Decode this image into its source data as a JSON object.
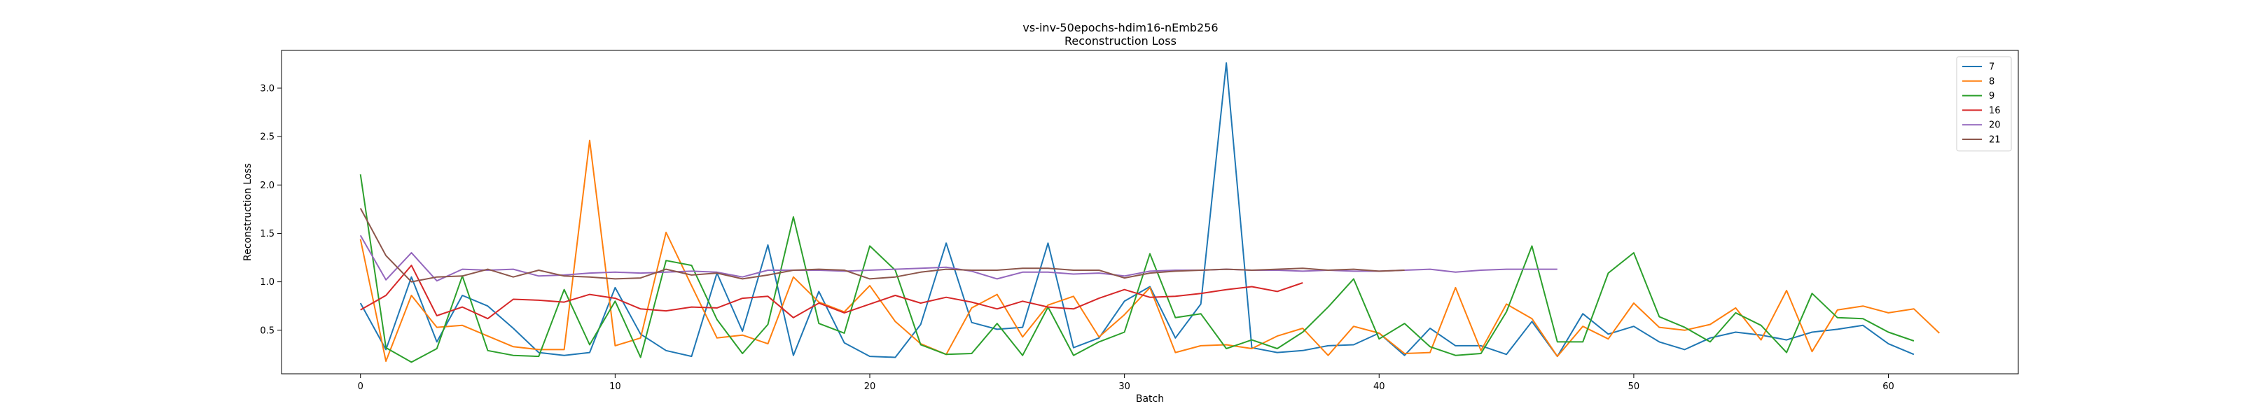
{
  "chart_data": {
    "type": "line",
    "title": "vs-inv-50epochs-hdim16-nEmb256",
    "subtitle": "Reconstruction Loss",
    "xlabel": "Batch",
    "ylabel": "Reconstruction Loss",
    "xlim": [
      -3.1,
      65.1
    ],
    "ylim": [
      0.05,
      3.39
    ],
    "xticks": [
      0,
      10,
      20,
      30,
      40,
      50,
      60
    ],
    "yticks": [
      0.5,
      1.0,
      1.5,
      2.0,
      2.5,
      3.0
    ],
    "ytick_labels": [
      "0.5",
      "1.0",
      "1.5",
      "2.0",
      "2.5",
      "3.0"
    ],
    "grid": false,
    "legend_position": "top-right",
    "series": [
      {
        "name": "7",
        "color": "#1f77b4",
        "values": [
          0.78,
          0.3,
          1.05,
          0.38,
          0.86,
          0.75,
          0.52,
          0.27,
          0.24,
          0.27,
          0.94,
          0.46,
          0.29,
          0.23,
          1.09,
          0.49,
          1.38,
          0.24,
          0.9,
          0.37,
          0.23,
          0.22,
          0.56,
          1.4,
          0.58,
          0.51,
          0.53,
          1.4,
          0.32,
          0.42,
          0.8,
          0.95,
          0.42,
          0.77,
          3.26,
          0.32,
          0.27,
          0.29,
          0.34,
          0.35,
          0.47,
          0.24,
          0.52,
          0.34,
          0.34,
          0.25,
          0.59,
          0.23,
          0.67,
          0.46,
          0.54,
          0.38,
          0.3,
          0.42,
          0.48,
          0.45,
          0.4,
          0.48,
          0.51,
          0.55,
          0.36,
          0.25
        ]
      },
      {
        "name": "8",
        "color": "#ff7f0e",
        "values": [
          1.44,
          0.18,
          0.86,
          0.53,
          0.55,
          0.44,
          0.33,
          0.3,
          0.3,
          2.46,
          0.34,
          0.42,
          1.51,
          0.96,
          0.42,
          0.45,
          0.36,
          1.05,
          0.79,
          0.69,
          0.96,
          0.59,
          0.36,
          0.25,
          0.73,
          0.87,
          0.43,
          0.76,
          0.85,
          0.43,
          0.66,
          0.94,
          0.27,
          0.34,
          0.35,
          0.31,
          0.44,
          0.52,
          0.24,
          0.54,
          0.47,
          0.26,
          0.27,
          0.94,
          0.29,
          0.77,
          0.62,
          0.23,
          0.54,
          0.41,
          0.78,
          0.53,
          0.5,
          0.56,
          0.73,
          0.4,
          0.91,
          0.28,
          0.71,
          0.75,
          0.68,
          0.72,
          0.47
        ]
      },
      {
        "name": "9",
        "color": "#2ca02c",
        "values": [
          2.11,
          0.32,
          0.17,
          0.31,
          1.06,
          0.29,
          0.24,
          0.23,
          0.92,
          0.35,
          0.8,
          0.22,
          1.22,
          1.17,
          0.61,
          0.26,
          0.56,
          1.67,
          0.57,
          0.47,
          1.37,
          1.12,
          0.35,
          0.25,
          0.26,
          0.57,
          0.24,
          0.74,
          0.24,
          0.38,
          0.48,
          1.29,
          0.63,
          0.67,
          0.31,
          0.4,
          0.31,
          0.48,
          0.74,
          1.03,
          0.41,
          0.57,
          0.33,
          0.24,
          0.26,
          0.69,
          1.37,
          0.38,
          0.38,
          1.09,
          1.3,
          0.64,
          0.53,
          0.38,
          0.68,
          0.55,
          0.27,
          0.88,
          0.63,
          0.62,
          0.48,
          0.39
        ]
      },
      {
        "name": "16",
        "color": "#d62728",
        "values": [
          0.71,
          0.86,
          1.17,
          0.65,
          0.74,
          0.62,
          0.82,
          0.81,
          0.79,
          0.87,
          0.83,
          0.72,
          0.7,
          0.74,
          0.73,
          0.83,
          0.85,
          0.63,
          0.78,
          0.68,
          0.77,
          0.86,
          0.78,
          0.84,
          0.79,
          0.72,
          0.8,
          0.74,
          0.72,
          0.83,
          0.92,
          0.84,
          0.85,
          0.88,
          0.92,
          0.95,
          0.9,
          0.99
        ]
      },
      {
        "name": "20",
        "color": "#9467bd",
        "values": [
          1.48,
          1.02,
          1.3,
          1.01,
          1.13,
          1.12,
          1.13,
          1.06,
          1.07,
          1.09,
          1.1,
          1.09,
          1.1,
          1.11,
          1.1,
          1.05,
          1.12,
          1.12,
          1.12,
          1.11,
          1.12,
          1.13,
          1.14,
          1.15,
          1.11,
          1.03,
          1.1,
          1.1,
          1.08,
          1.09,
          1.06,
          1.11,
          1.12,
          1.12,
          1.13,
          1.12,
          1.12,
          1.11,
          1.12,
          1.11,
          1.11,
          1.12,
          1.13,
          1.1,
          1.12,
          1.13,
          1.13,
          1.13
        ]
      },
      {
        "name": "21",
        "color": "#8c564b",
        "values": [
          1.76,
          1.27,
          1.0,
          1.05,
          1.06,
          1.13,
          1.05,
          1.12,
          1.06,
          1.05,
          1.03,
          1.04,
          1.13,
          1.07,
          1.09,
          1.03,
          1.07,
          1.12,
          1.13,
          1.12,
          1.03,
          1.05,
          1.1,
          1.13,
          1.12,
          1.12,
          1.14,
          1.14,
          1.12,
          1.12,
          1.04,
          1.09,
          1.11,
          1.12,
          1.13,
          1.12,
          1.13,
          1.14,
          1.12,
          1.13,
          1.11,
          1.12
        ]
      }
    ]
  }
}
